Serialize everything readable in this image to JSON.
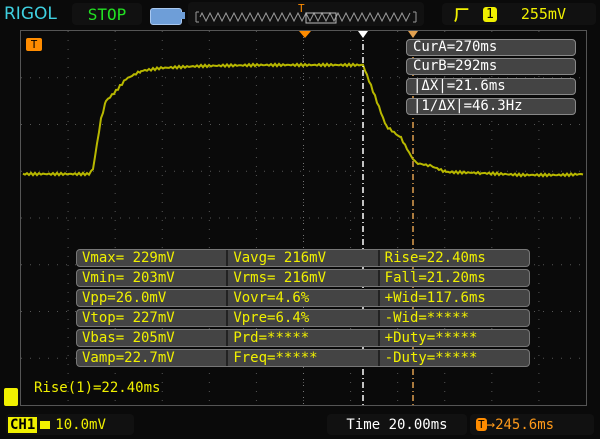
{
  "header": {
    "brand": "RIGOL",
    "run_state": "STOP",
    "trigger_edge_icon": "rising-edge-icon",
    "trigger_channel": "1",
    "trigger_level": "255mV"
  },
  "cursors": {
    "cur_a": "CurA=270ms",
    "cur_b": "CurB=292ms",
    "delta_x": "|ΔX|=21.6ms",
    "inv_delta_x": "|1/ΔX|=46.3Hz"
  },
  "measurements": [
    [
      "Vmax= 229mV",
      "Vavg= 216mV",
      "Rise=22.40ms"
    ],
    [
      "Vmin= 203mV",
      "Vrms= 216mV",
      "Fall=21.20ms"
    ],
    [
      "Vpp=26.0mV",
      "Vovr=4.6%",
      "+Wid=117.6ms"
    ],
    [
      "Vtop= 227mV",
      "Vpre=6.4%",
      "-Wid=*****"
    ],
    [
      "Vbas= 205mV",
      "Prd=*****",
      "+Duty=*****"
    ],
    [
      "Vamp=22.7mV",
      "Freq=*****",
      "-Duty=*****"
    ]
  ],
  "rise_readout": "Rise(1)=22.40ms",
  "footer": {
    "channel": "CH1",
    "volts_per_div": "10.0mV",
    "timebase": "Time 20.00ms",
    "trigger_offset": "245.6ms"
  },
  "colors": {
    "trace": "#b8b800",
    "cursor_a": "#ffffff",
    "cursor_b": "#e0a050",
    "trigger": "#ff8c00"
  }
}
